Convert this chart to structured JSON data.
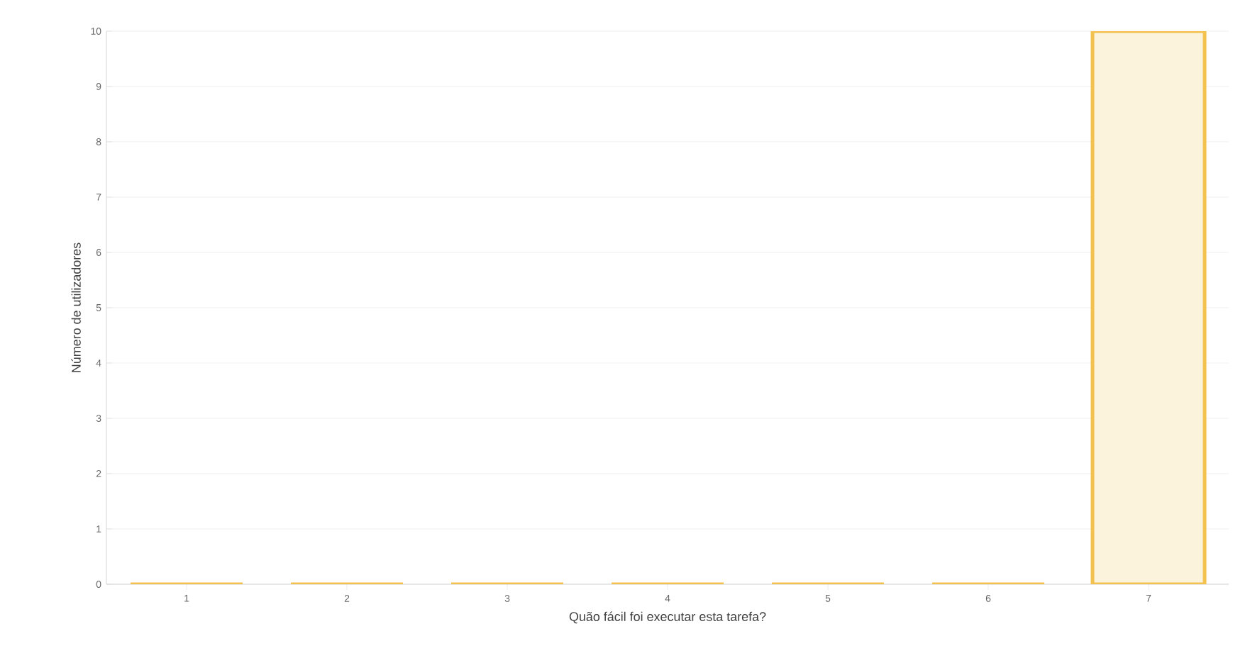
{
  "chart_data": {
    "type": "bar",
    "xlabel": "Quão fácil foi executar esta tarefa?",
    "ylabel": "Número de utilizadores",
    "categories": [
      "1",
      "2",
      "3",
      "4",
      "5",
      "6",
      "7"
    ],
    "values": [
      0,
      0,
      0,
      0,
      0,
      0,
      10
    ],
    "color": "#f2c14e",
    "ylim": [
      0,
      10
    ],
    "yticks": [
      0,
      1,
      2,
      3,
      4,
      5,
      6,
      7,
      8,
      9,
      10
    ],
    "grid": "y"
  }
}
